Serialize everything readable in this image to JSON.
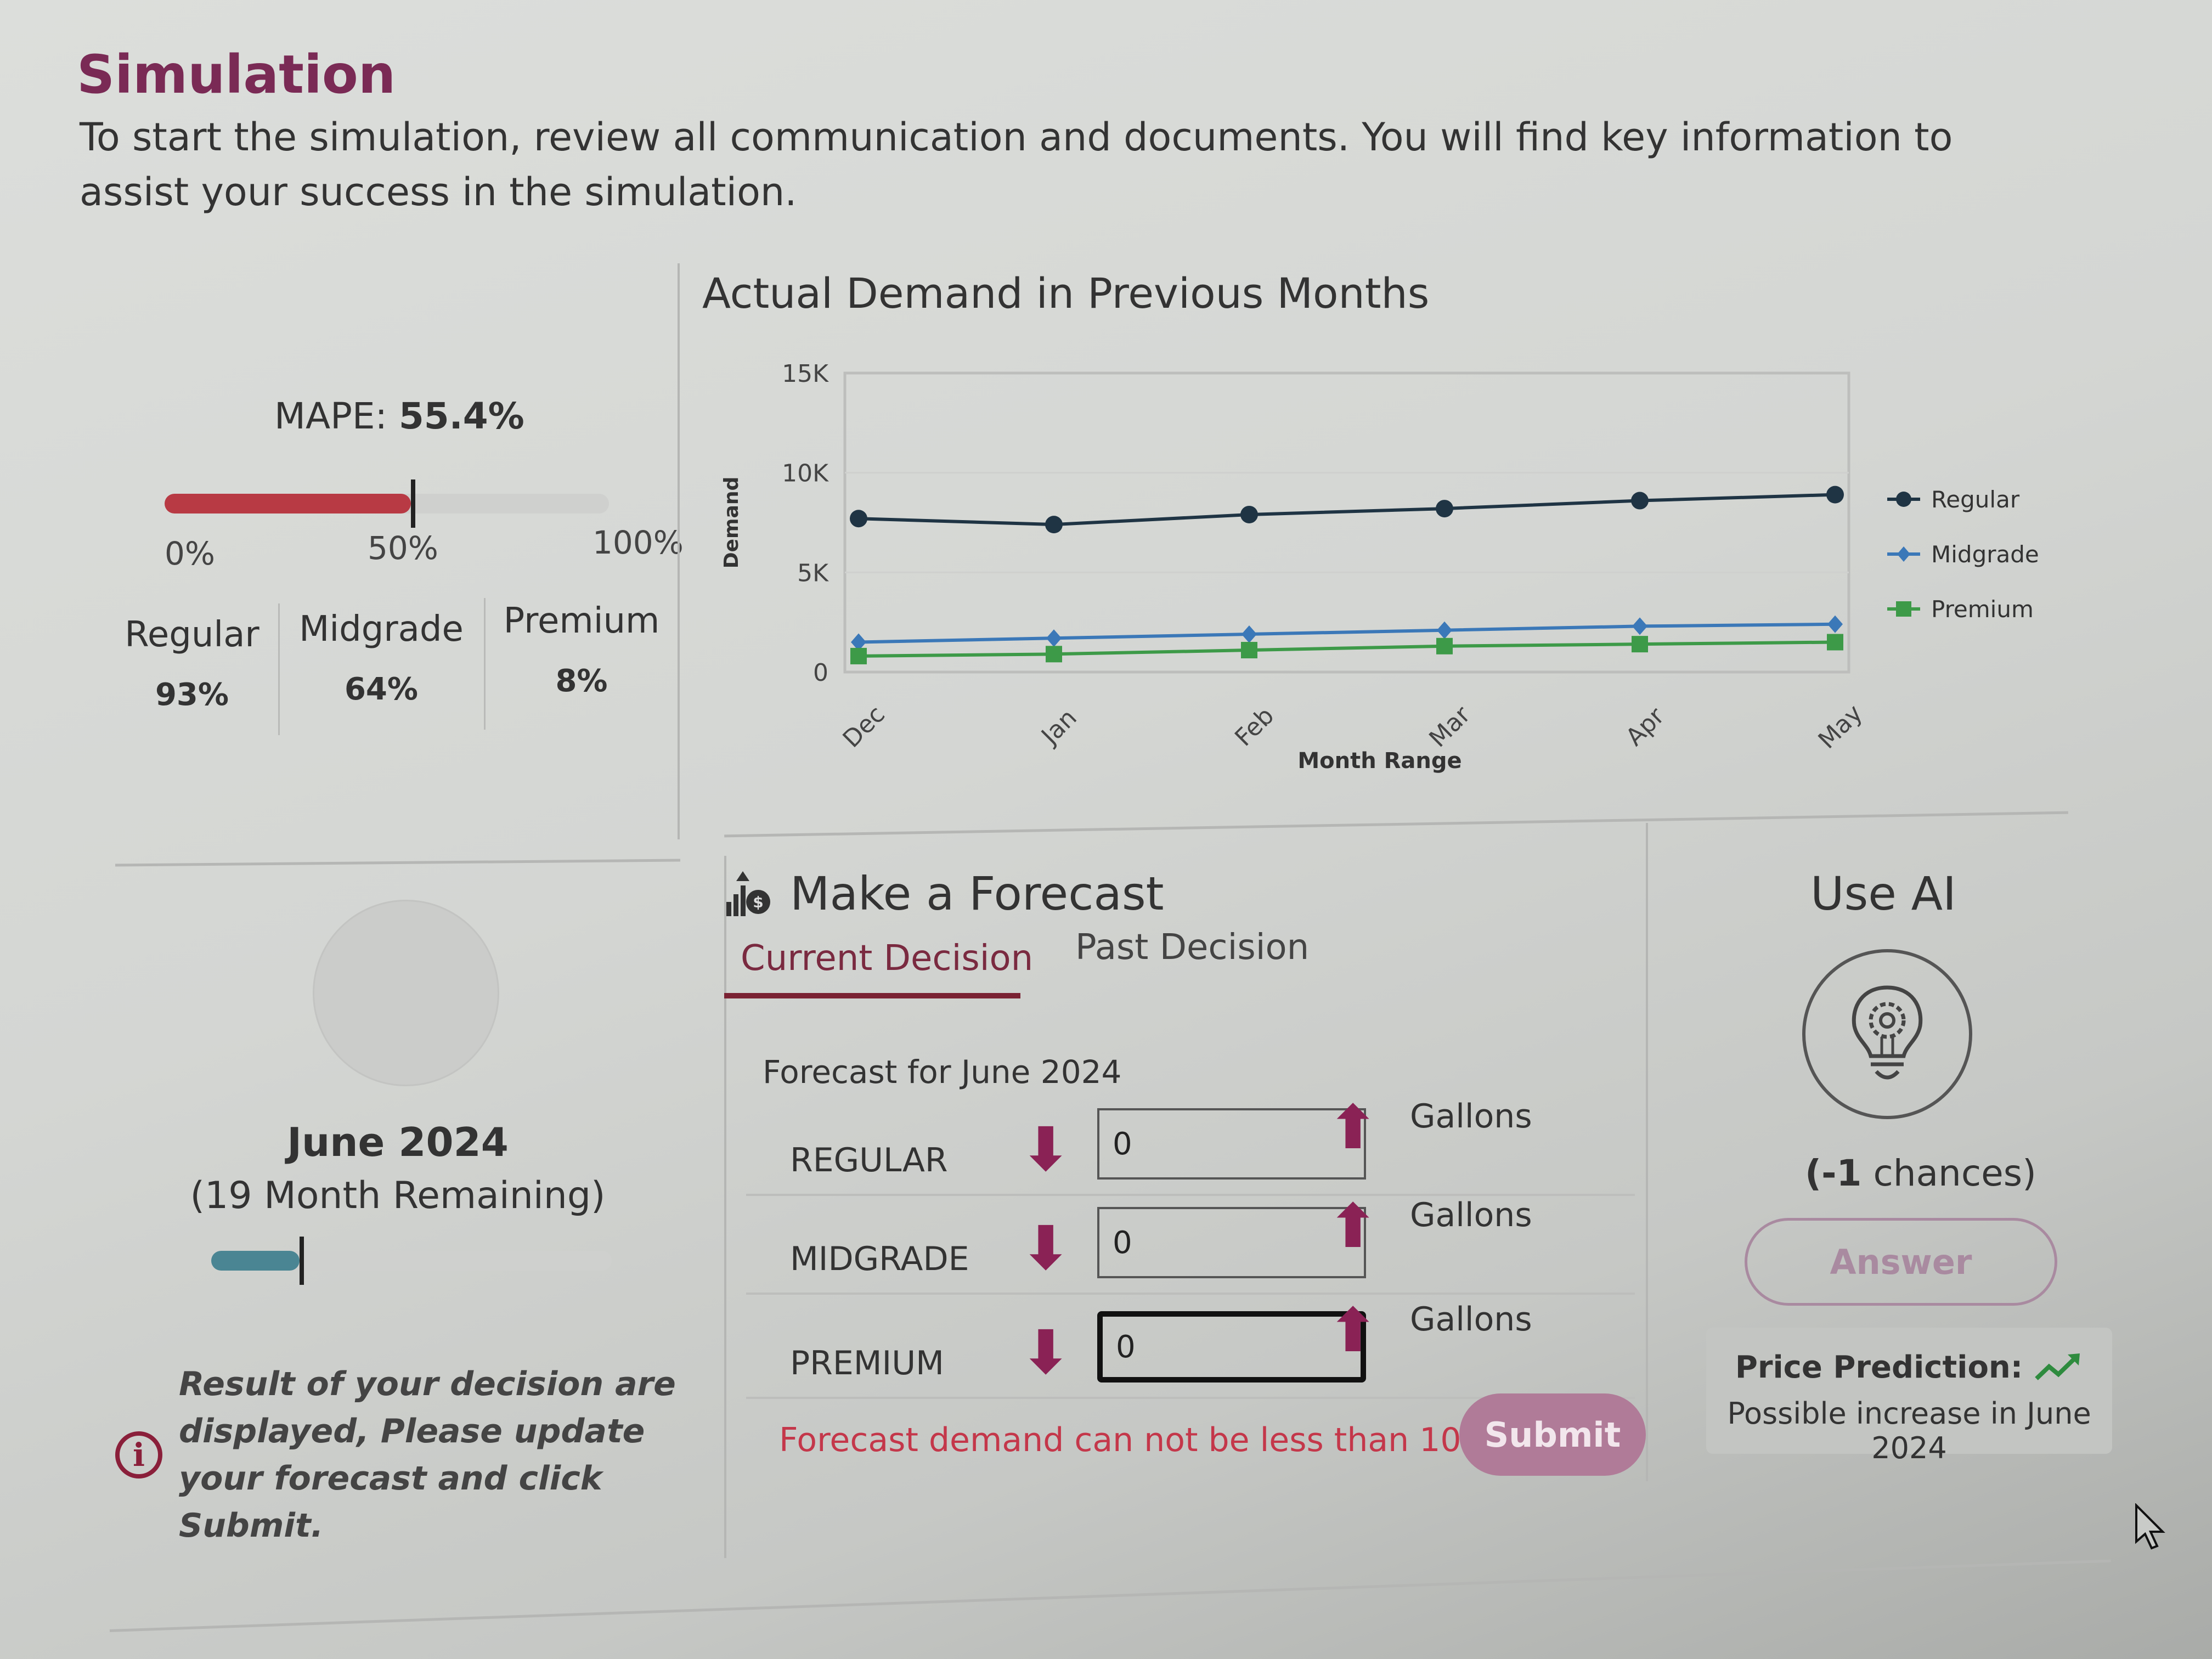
{
  "header": {
    "title": "Simulation",
    "intro": "To start the simulation, review all communication and documents. You will find key information to assist your success in the simulation."
  },
  "mape": {
    "label": "MAPE:",
    "value": "55.4%",
    "percent": 55.4,
    "bar_color": "#b83a44",
    "scale": [
      "0%",
      "50%",
      "100%"
    ],
    "grades": [
      {
        "label": "Regular",
        "value": "93%"
      },
      {
        "label": "Midgrade",
        "value": "64%"
      },
      {
        "label": "Premium",
        "value": "8%"
      }
    ]
  },
  "chart_data": {
    "type": "line",
    "title": "Actual Demand in Previous Months",
    "xlabel": "Month Range",
    "ylabel": "Demand",
    "categories": [
      "Dec",
      "Jan",
      "Feb",
      "Mar",
      "Apr",
      "May"
    ],
    "y_ticks": [
      "0",
      "5K",
      "10K",
      "15K"
    ],
    "ylim": [
      0,
      15000
    ],
    "grid": true,
    "legend_position": "right",
    "series": [
      {
        "name": "Regular",
        "color": "#1f3444",
        "marker": "circle",
        "values": [
          7700,
          7400,
          7900,
          8200,
          8600,
          8900
        ]
      },
      {
        "name": "Midgrade",
        "color": "#3b78b8",
        "marker": "diamond",
        "values": [
          1500,
          1700,
          1900,
          2100,
          2300,
          2400
        ]
      },
      {
        "name": "Premium",
        "color": "#3d9a48",
        "marker": "square",
        "values": [
          800,
          900,
          1100,
          1300,
          1400,
          1500
        ]
      }
    ]
  },
  "timeline": {
    "month": "June 2024",
    "remaining": "(19 Month Remaining)",
    "progress_percent": 22,
    "bar_color": "#4a8593",
    "info_icon": "info-circle-icon",
    "info_text": "Result of your decision are displayed, Please update your forecast and click Submit."
  },
  "forecast": {
    "title": "Make a Forecast",
    "icon": "chart-dollar-icon",
    "tabs": [
      {
        "label": "Current Decision",
        "active": true
      },
      {
        "label": "Past Decision",
        "active": false
      }
    ],
    "subtitle": "Forecast for June 2024",
    "rows": [
      {
        "grade": "REGULAR",
        "value": "0",
        "unit": "Gallons"
      },
      {
        "grade": "MIDGRADE",
        "value": "0",
        "unit": "Gallons"
      },
      {
        "grade": "PREMIUM",
        "value": "0",
        "unit": "Gallons"
      }
    ],
    "down_arrow": "⬇",
    "up_arrow": "⬆",
    "error": "Forecast demand can not be less than 100!",
    "submit_label": "Submit"
  },
  "ai": {
    "title": "Use AI",
    "icon": "lightbulb-gear-icon",
    "chances_num": "(-1",
    "chances_text": " chances)",
    "answer_label": "Answer",
    "price_label": "Price Prediction:",
    "price_desc": "Possible increase in June 2024",
    "trend_icon": "trending-up-icon"
  }
}
